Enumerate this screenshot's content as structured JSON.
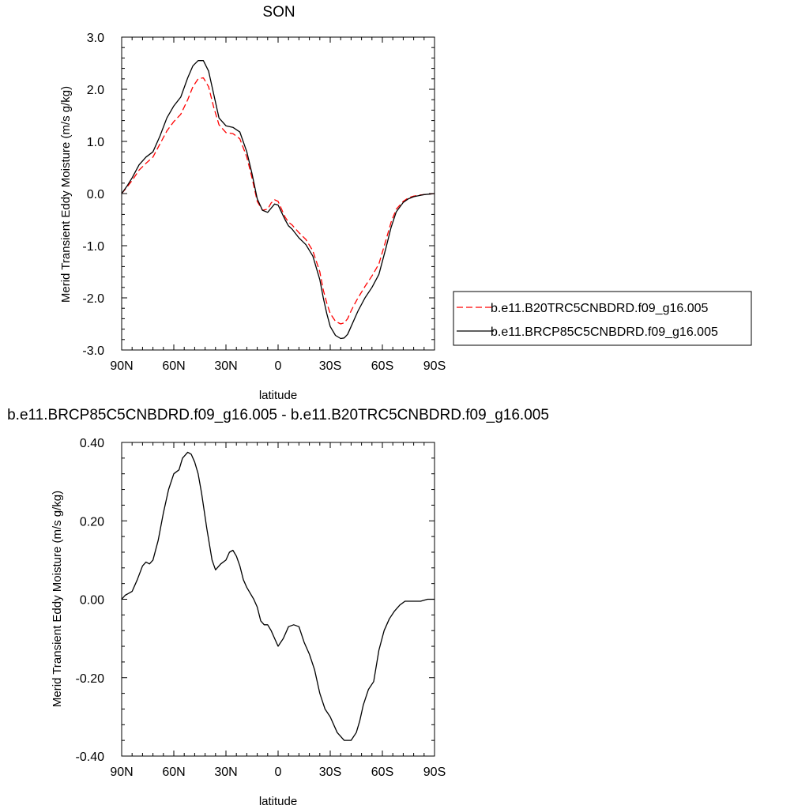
{
  "chart_data": [
    {
      "type": "line",
      "title": "SON",
      "xlabel": "latitude",
      "ylabel": "Merid Transient Eddy Moisture (m/s g/kg)",
      "xlim": [
        90,
        -90
      ],
      "ylim": [
        -3.0,
        3.0
      ],
      "xticks": [
        90,
        60,
        30,
        0,
        -30,
        -60,
        -90
      ],
      "xtick_labels": [
        "90N",
        "60N",
        "30N",
        "0",
        "30S",
        "60S",
        "90S"
      ],
      "yticks": [
        -3.0,
        -2.0,
        -1.0,
        0.0,
        1.0,
        2.0,
        3.0
      ],
      "ytick_labels": [
        "-3.0",
        "-2.0",
        "-1.0",
        "0.0",
        "1.0",
        "2.0",
        "3.0"
      ],
      "legend_position": "right",
      "series": [
        {
          "name": "b.e11.B20TRC5CNBDRD.f09_g16.005",
          "color": "#ff0000",
          "dash": "dashed",
          "x": [
            90,
            87,
            84,
            80,
            76,
            72,
            68,
            64,
            60,
            56,
            52,
            49,
            46,
            43,
            40,
            37,
            34,
            30,
            26,
            22,
            18,
            15,
            12,
            9,
            6,
            4,
            2,
            0,
            -2,
            -4,
            -6,
            -8,
            -12,
            -16,
            -20,
            -24,
            -26,
            -28,
            -30,
            -33,
            -36,
            -38,
            -40,
            -42,
            -44,
            -46,
            -50,
            -54,
            -58,
            -62,
            -65,
            -68,
            -72,
            -75,
            -78,
            -81,
            -84,
            -87,
            -90
          ],
          "values": [
            0.0,
            0.12,
            0.25,
            0.45,
            0.58,
            0.7,
            0.95,
            1.2,
            1.38,
            1.52,
            1.8,
            2.05,
            2.2,
            2.22,
            2.05,
            1.65,
            1.32,
            1.17,
            1.15,
            1.05,
            0.7,
            0.3,
            -0.15,
            -0.32,
            -0.3,
            -0.18,
            -0.12,
            -0.15,
            -0.3,
            -0.45,
            -0.55,
            -0.6,
            -0.75,
            -0.88,
            -1.1,
            -1.5,
            -1.85,
            -2.1,
            -2.3,
            -2.45,
            -2.5,
            -2.48,
            -2.4,
            -2.25,
            -2.12,
            -2.0,
            -1.78,
            -1.58,
            -1.35,
            -0.9,
            -0.55,
            -0.3,
            -0.15,
            -0.08,
            -0.05,
            -0.03,
            -0.02,
            -0.01,
            0.0
          ]
        },
        {
          "name": "b.e11.BRCP85C5CNBDRD.f09_g16.005",
          "color": "#000000",
          "dash": "solid",
          "x": [
            90,
            87,
            84,
            80,
            76,
            72,
            68,
            64,
            60,
            56,
            52,
            49,
            46,
            43,
            40,
            37,
            34,
            30,
            26,
            22,
            18,
            15,
            12,
            9,
            6,
            4,
            2,
            0,
            -2,
            -4,
            -6,
            -8,
            -12,
            -16,
            -20,
            -24,
            -26,
            -28,
            -30,
            -33,
            -36,
            -38,
            -40,
            -42,
            -44,
            -46,
            -50,
            -54,
            -58,
            -62,
            -65,
            -68,
            -72,
            -75,
            -78,
            -81,
            -84,
            -87,
            -90
          ],
          "values": [
            0.0,
            0.14,
            0.3,
            0.55,
            0.7,
            0.8,
            1.1,
            1.45,
            1.68,
            1.85,
            2.22,
            2.45,
            2.55,
            2.55,
            2.35,
            1.9,
            1.45,
            1.3,
            1.27,
            1.18,
            0.8,
            0.38,
            -0.1,
            -0.32,
            -0.36,
            -0.28,
            -0.2,
            -0.22,
            -0.36,
            -0.5,
            -0.62,
            -0.68,
            -0.85,
            -0.98,
            -1.2,
            -1.65,
            -2.0,
            -2.3,
            -2.55,
            -2.72,
            -2.78,
            -2.77,
            -2.7,
            -2.55,
            -2.4,
            -2.25,
            -2.0,
            -1.8,
            -1.55,
            -1.05,
            -0.65,
            -0.35,
            -0.17,
            -0.1,
            -0.06,
            -0.04,
            -0.02,
            -0.01,
            0.0
          ]
        }
      ]
    },
    {
      "type": "line",
      "title": "b.e11.BRCP85C5CNBDRD.f09_g16.005 - b.e11.B20TRC5CNBDRD.f09_g16.005",
      "xlabel": "latitude",
      "ylabel": "Merid Transient Eddy Moisture (m/s g/kg)",
      "xlim": [
        90,
        -90
      ],
      "ylim": [
        -0.4,
        0.4
      ],
      "xticks": [
        90,
        60,
        30,
        0,
        -30,
        -60,
        -90
      ],
      "xtick_labels": [
        "90N",
        "60N",
        "30N",
        "0",
        "30S",
        "60S",
        "90S"
      ],
      "yticks": [
        -0.4,
        -0.2,
        0.0,
        0.2,
        0.4
      ],
      "ytick_labels": [
        "-0.40",
        "-0.20",
        "0.00",
        "0.20",
        "0.40"
      ],
      "series": [
        {
          "color": "#000000",
          "dash": "solid",
          "x": [
            90,
            88,
            86,
            84,
            81,
            78,
            76,
            74,
            72,
            69,
            66,
            63,
            60,
            57,
            55,
            52,
            50,
            48,
            46,
            44,
            41,
            38,
            36,
            33,
            30,
            28,
            26,
            24,
            22,
            20,
            18,
            16,
            14,
            12,
            10,
            8,
            6,
            4,
            2,
            0,
            -3,
            -6,
            -9,
            -12,
            -15,
            -18,
            -21,
            -24,
            -27,
            -30,
            -34,
            -38,
            -42,
            -45,
            -47,
            -49,
            -52,
            -55,
            -58,
            -61,
            -64,
            -67,
            -70,
            -73,
            -76,
            -79,
            -82,
            -86,
            -90
          ],
          "values": [
            0.0,
            0.01,
            0.015,
            0.02,
            0.05,
            0.085,
            0.095,
            0.09,
            0.1,
            0.15,
            0.22,
            0.28,
            0.32,
            0.33,
            0.36,
            0.375,
            0.37,
            0.35,
            0.32,
            0.27,
            0.18,
            0.1,
            0.075,
            0.09,
            0.1,
            0.12,
            0.125,
            0.11,
            0.085,
            0.05,
            0.03,
            0.015,
            0.0,
            -0.02,
            -0.055,
            -0.065,
            -0.065,
            -0.08,
            -0.1,
            -0.12,
            -0.1,
            -0.07,
            -0.065,
            -0.07,
            -0.11,
            -0.14,
            -0.18,
            -0.24,
            -0.28,
            -0.3,
            -0.34,
            -0.36,
            -0.36,
            -0.34,
            -0.31,
            -0.27,
            -0.23,
            -0.21,
            -0.13,
            -0.08,
            -0.05,
            -0.03,
            -0.015,
            -0.005,
            -0.005,
            -0.005,
            -0.005,
            0.0,
            0.0
          ]
        }
      ]
    }
  ]
}
